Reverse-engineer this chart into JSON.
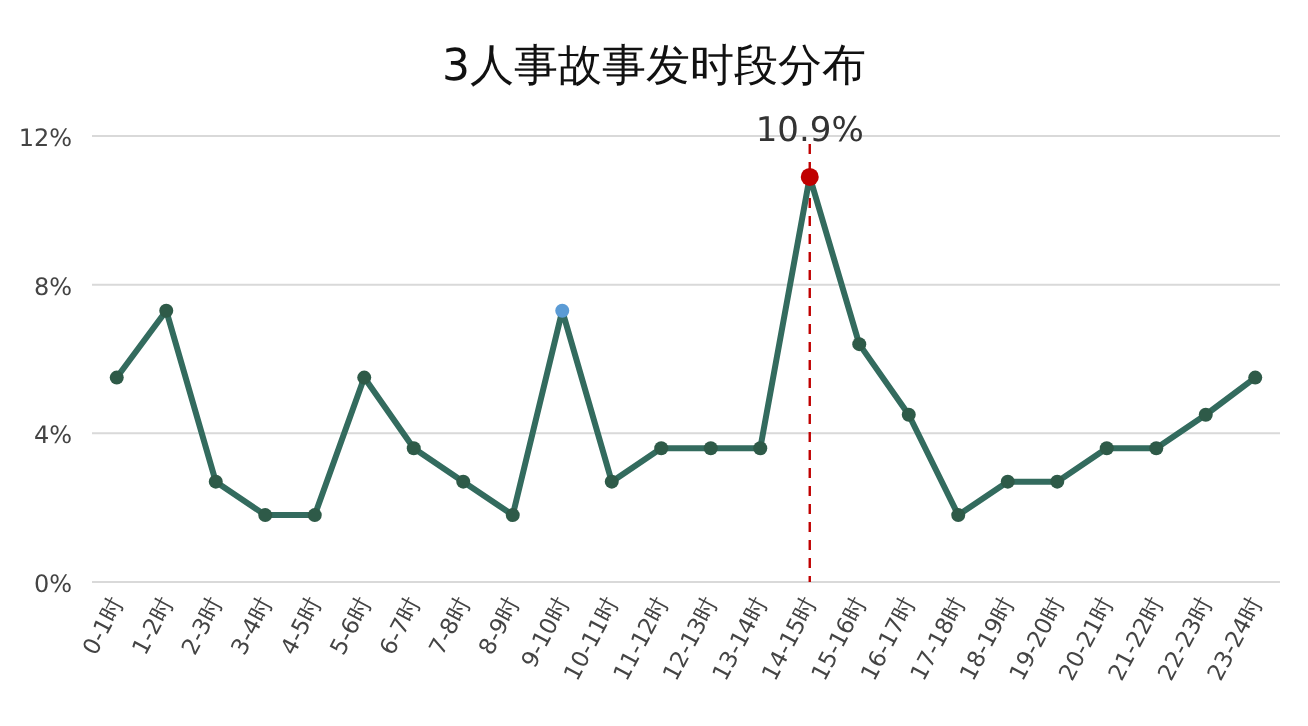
{
  "chart_data": {
    "type": "line",
    "title": "3人事故事发时段分布",
    "categories": [
      "0-1时",
      "1-2时",
      "2-3时",
      "3-4时",
      "4-5时",
      "5-6时",
      "6-7时",
      "7-8时",
      "8-9时",
      "9-10时",
      "10-11时",
      "11-12时",
      "12-13时",
      "13-14时",
      "14-15时",
      "15-16时",
      "16-17时",
      "17-18时",
      "18-19时",
      "19-20时",
      "20-21时",
      "21-22时",
      "22-23时",
      "23-24时"
    ],
    "series": [
      {
        "color": "#336b5e",
        "values": [
          5.5,
          7.3,
          2.7,
          1.8,
          1.8,
          5.5,
          3.6,
          2.7,
          1.8,
          7.3,
          2.7,
          3.6,
          3.6,
          3.6,
          10.9,
          6.4,
          4.5,
          1.8,
          2.7,
          2.7,
          3.6,
          3.6,
          4.5,
          5.5
        ],
        "colors": [
          "#2e5a48",
          "#2e5a48",
          "#2e5a48",
          "#2e5a48",
          "#2e5a48",
          "#2e5a48",
          "#2e5a48",
          "#2e5a48",
          "#2e5a48",
          "#5b9bd5",
          "#2e5a48",
          "#2e5a48",
          "#2e5a48",
          "#2e5a48",
          "#c00000",
          "#2e5a48",
          "#2e5a48",
          "#2e5a48",
          "#2e5a48",
          "#2e5a48",
          "#2e5a48",
          "#2e5a48",
          "#2e5a48",
          "#2e5a48"
        ]
      }
    ],
    "ylim": [
      0,
      12
    ],
    "yticks": [
      {
        "value": 0,
        "label": "0%"
      },
      {
        "value": 4,
        "label": "4%"
      },
      {
        "value": 8,
        "label": "8%"
      },
      {
        "value": 12,
        "label": "12%"
      }
    ],
    "grid": "y",
    "marker": "circle",
    "line_style": "solid",
    "ref_lines": [
      {
        "axis": "x",
        "value": "14-15时",
        "color": "#c00000",
        "line_style": "dashed"
      }
    ],
    "annotations": [
      {
        "text": "10.9%",
        "x": "14-15时",
        "y": 10.9
      }
    ]
  }
}
